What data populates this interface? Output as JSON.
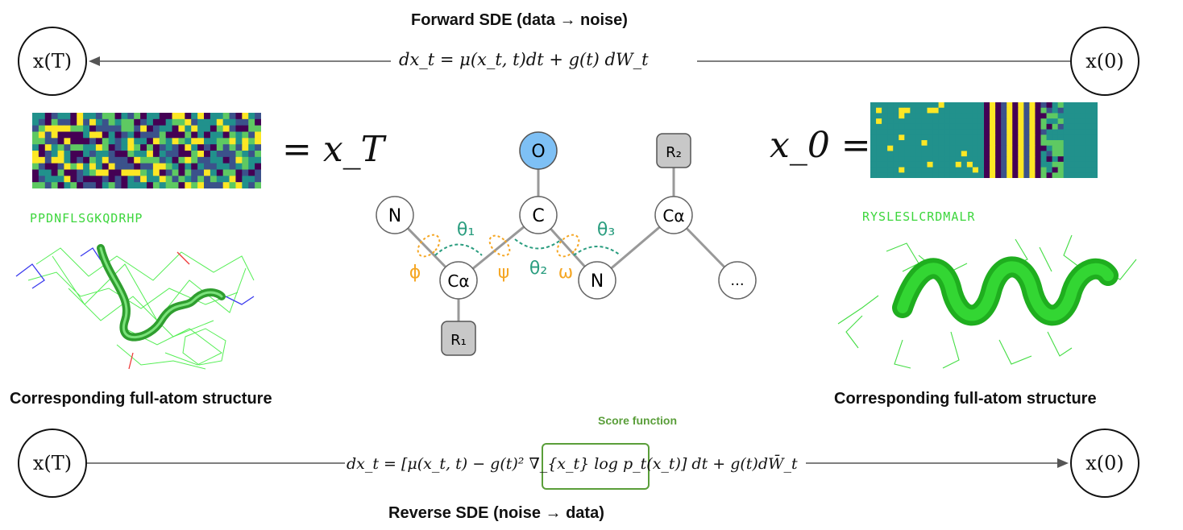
{
  "forward": {
    "title": "Forward SDE (data → noise)",
    "equation": "dx_t = μ(x_t, t)dt + g(t) dW_t"
  },
  "reverse": {
    "title": "Reverse SDE (noise → data)",
    "equation": "dx_t = [μ(x_t, t) − g(t)² ∇_{x_t} log p_t(x_t)] dt + g(t)dW̄_t",
    "score_label": "Score function"
  },
  "states": {
    "xT": "x(T)",
    "x0": "x(0)"
  },
  "left_panel": {
    "equals_label": "= x_T",
    "sequence": "PPDNFLSGKQDRHP",
    "caption": "Corresponding full-atom structure"
  },
  "right_panel": {
    "equals_label": "x_0 =",
    "sequence": "RYSLESLCRDMALR",
    "caption": "Corresponding full-atom structure"
  },
  "backbone": {
    "nodes": {
      "N1": "N",
      "Ca1": "Cα",
      "C": "C",
      "O": "O",
      "N2": "N",
      "Ca2": "Cα",
      "R1": "R₁",
      "R2": "R₂",
      "more": "..."
    },
    "angles": {
      "theta1": "θ₁",
      "theta2": "θ₂",
      "theta3": "θ₃",
      "phi": "ϕ",
      "psi": "ψ",
      "omega": "ω"
    }
  },
  "colors": {
    "teal_angle": "#2a9d7f",
    "orange_angle": "#f5a623",
    "oxygen_fill": "#7ec0f5",
    "side_chain_fill": "#c8c8c8",
    "score_box": "#5a9e3a",
    "sequence_green": "#3dd63d",
    "heatmap_palette": [
      "#440154",
      "#3b528b",
      "#21918c",
      "#5ec962",
      "#fde725"
    ]
  }
}
